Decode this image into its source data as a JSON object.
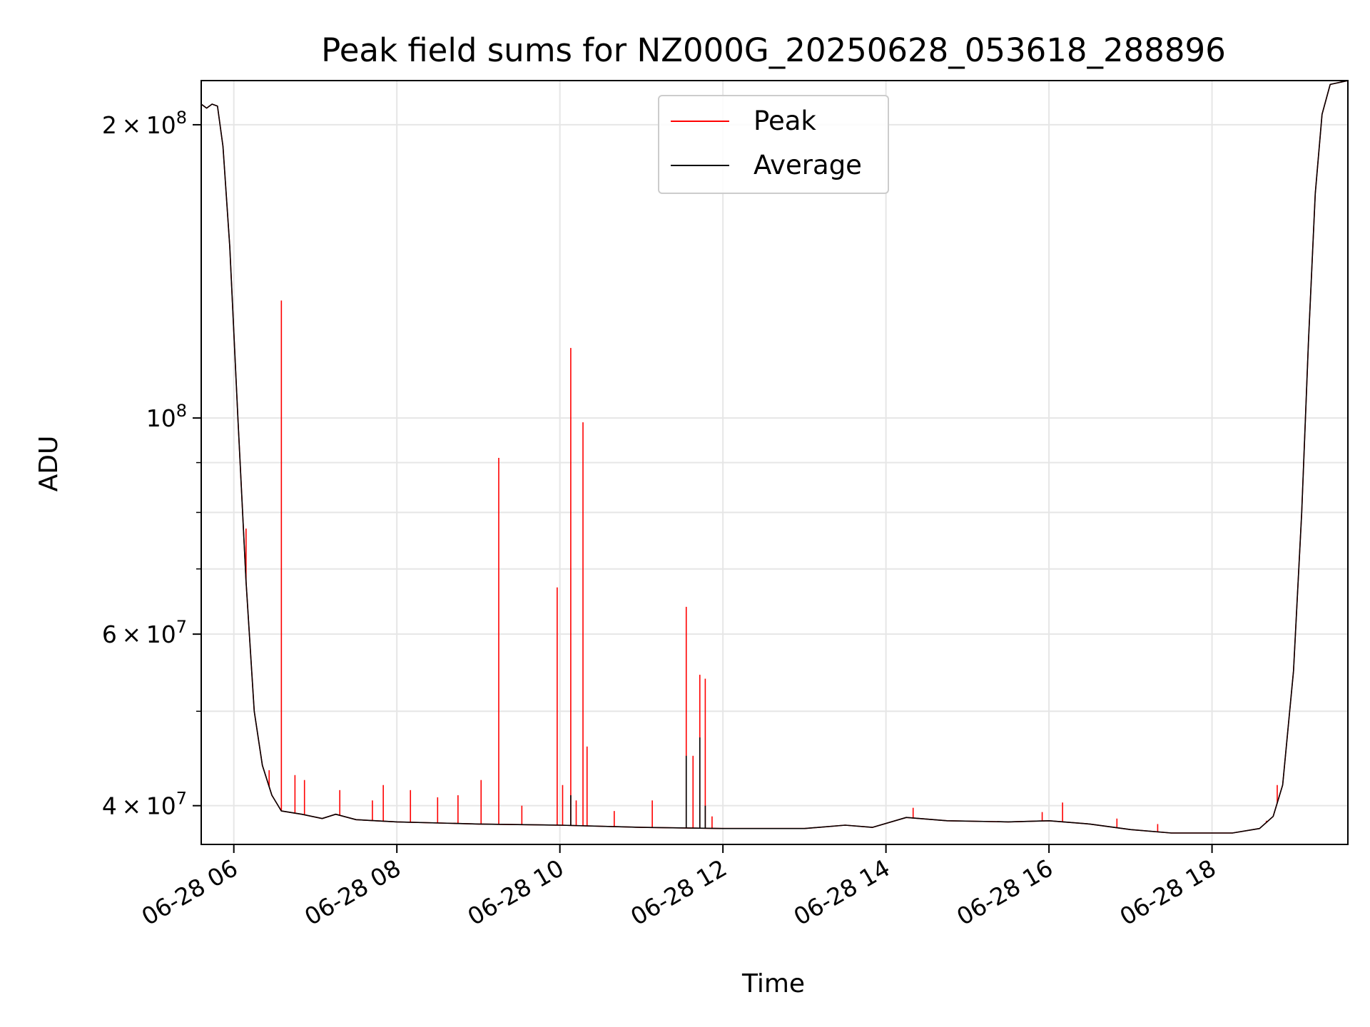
{
  "chart_data": {
    "type": "line",
    "title": "Peak field sums for NZ000G_20250628_053618_288896",
    "xlabel": "Time",
    "ylabel": "ADU",
    "y_scale": "log",
    "x_axis": "datetime",
    "xlim": [
      "2025-06-28 05:36",
      "2025-06-28 19:40"
    ],
    "ylim": [
      36500000,
      222000000
    ],
    "x_tick_labels": [
      "06-28 06",
      "06-28 08",
      "06-28 10",
      "06-28 12",
      "06-28 14",
      "06-28 16",
      "06-28 18"
    ],
    "y_major_ticks": [
      {
        "value": 40000000,
        "mantissa": "4",
        "exponent": "7"
      },
      {
        "value": 60000000,
        "mantissa": "6",
        "exponent": "7"
      },
      {
        "value": 100000000,
        "mantissa": "",
        "exponent": "8"
      },
      {
        "value": 200000000,
        "mantissa": "2",
        "exponent": "8"
      }
    ],
    "y_minor_ticks": [
      50000000,
      70000000,
      80000000,
      90000000
    ],
    "grid": true,
    "legend_position": "top-center",
    "series": [
      {
        "name": "Peak",
        "color": "#ff0000",
        "base": [
          [
            "2025-06-28 05:36",
            210000000
          ],
          [
            "2025-06-28 05:40",
            208000000
          ],
          [
            "2025-06-28 05:44",
            210000000
          ],
          [
            "2025-06-28 05:48",
            209000000
          ],
          [
            "2025-06-28 05:52",
            190000000
          ],
          [
            "2025-06-28 05:57",
            150000000
          ],
          [
            "2025-06-28 06:03",
            100000000
          ],
          [
            "2025-06-28 06:09",
            68000000
          ],
          [
            "2025-06-28 06:15",
            50000000
          ],
          [
            "2025-06-28 06:21",
            44000000
          ],
          [
            "2025-06-28 06:28",
            41000000
          ],
          [
            "2025-06-28 06:35",
            39500000
          ],
          [
            "2025-06-28 06:50",
            39200000
          ],
          [
            "2025-06-28 07:05",
            38800000
          ],
          [
            "2025-06-28 07:15",
            39200000
          ],
          [
            "2025-06-28 07:30",
            38700000
          ],
          [
            "2025-06-28 08:00",
            38500000
          ],
          [
            "2025-06-28 09:00",
            38300000
          ],
          [
            "2025-06-28 10:00",
            38200000
          ],
          [
            "2025-06-28 11:00",
            38000000
          ],
          [
            "2025-06-28 12:00",
            37900000
          ],
          [
            "2025-06-28 13:00",
            37900000
          ],
          [
            "2025-06-28 13:30",
            38200000
          ],
          [
            "2025-06-28 13:50",
            38000000
          ],
          [
            "2025-06-28 14:15",
            38900000
          ],
          [
            "2025-06-28 14:45",
            38600000
          ],
          [
            "2025-06-28 15:30",
            38500000
          ],
          [
            "2025-06-28 16:00",
            38600000
          ],
          [
            "2025-06-28 16:30",
            38300000
          ],
          [
            "2025-06-28 17:00",
            37800000
          ],
          [
            "2025-06-28 17:30",
            37500000
          ],
          [
            "2025-06-28 18:15",
            37500000
          ],
          [
            "2025-06-28 18:35",
            37900000
          ],
          [
            "2025-06-28 18:45",
            39000000
          ],
          [
            "2025-06-28 18:52",
            42000000
          ],
          [
            "2025-06-28 19:00",
            55000000
          ],
          [
            "2025-06-28 19:06",
            80000000
          ],
          [
            "2025-06-28 19:11",
            120000000
          ],
          [
            "2025-06-28 19:16",
            170000000
          ],
          [
            "2025-06-28 19:21",
            205000000
          ],
          [
            "2025-06-28 19:27",
            220000000
          ],
          [
            "2025-06-28 19:40",
            222000000
          ]
        ],
        "spikes": [
          [
            "2025-06-28 06:09",
            77000000
          ],
          [
            "2025-06-28 06:35",
            132000000
          ],
          [
            "2025-06-28 06:26",
            43500000
          ],
          [
            "2025-06-28 06:45",
            43000000
          ],
          [
            "2025-06-28 06:52",
            42500000
          ],
          [
            "2025-06-28 07:18",
            41500000
          ],
          [
            "2025-06-28 07:42",
            40500000
          ],
          [
            "2025-06-28 07:50",
            42000000
          ],
          [
            "2025-06-28 08:10",
            41500000
          ],
          [
            "2025-06-28 08:30",
            40800000
          ],
          [
            "2025-06-28 08:45",
            41000000
          ],
          [
            "2025-06-28 09:02",
            42500000
          ],
          [
            "2025-06-28 09:15",
            91000000
          ],
          [
            "2025-06-28 09:32",
            40000000
          ],
          [
            "2025-06-28 09:58",
            67000000
          ],
          [
            "2025-06-28 10:02",
            42000000
          ],
          [
            "2025-06-28 10:08",
            118000000
          ],
          [
            "2025-06-28 10:12",
            40500000
          ],
          [
            "2025-06-28 10:17",
            99000000
          ],
          [
            "2025-06-28 10:20",
            46000000
          ],
          [
            "2025-06-28 10:40",
            39500000
          ],
          [
            "2025-06-28 11:08",
            40500000
          ],
          [
            "2025-06-28 11:33",
            64000000
          ],
          [
            "2025-06-28 11:38",
            45000000
          ],
          [
            "2025-06-28 11:43",
            54500000
          ],
          [
            "2025-06-28 11:47",
            54000000
          ],
          [
            "2025-06-28 11:52",
            39000000
          ],
          [
            "2025-06-28 14:20",
            39800000
          ],
          [
            "2025-06-28 15:55",
            39400000
          ],
          [
            "2025-06-28 16:10",
            40300000
          ],
          [
            "2025-06-28 16:50",
            38800000
          ],
          [
            "2025-06-28 17:20",
            38300000
          ],
          [
            "2025-06-28 18:40",
            38600000
          ],
          [
            "2025-06-28 18:48",
            42000000
          ]
        ]
      },
      {
        "name": "Average",
        "color": "#000000",
        "base": [
          [
            "2025-06-28 05:36",
            210000000
          ],
          [
            "2025-06-28 05:40",
            208000000
          ],
          [
            "2025-06-28 05:44",
            210000000
          ],
          [
            "2025-06-28 05:48",
            209000000
          ],
          [
            "2025-06-28 05:52",
            190000000
          ],
          [
            "2025-06-28 05:57",
            150000000
          ],
          [
            "2025-06-28 06:03",
            100000000
          ],
          [
            "2025-06-28 06:09",
            68000000
          ],
          [
            "2025-06-28 06:15",
            50000000
          ],
          [
            "2025-06-28 06:21",
            44000000
          ],
          [
            "2025-06-28 06:28",
            41000000
          ],
          [
            "2025-06-28 06:35",
            39500000
          ],
          [
            "2025-06-28 06:50",
            39200000
          ],
          [
            "2025-06-28 07:05",
            38800000
          ],
          [
            "2025-06-28 07:15",
            39200000
          ],
          [
            "2025-06-28 07:30",
            38700000
          ],
          [
            "2025-06-28 08:00",
            38500000
          ],
          [
            "2025-06-28 09:00",
            38300000
          ],
          [
            "2025-06-28 10:00",
            38200000
          ],
          [
            "2025-06-28 11:00",
            38000000
          ],
          [
            "2025-06-28 12:00",
            37900000
          ],
          [
            "2025-06-28 13:00",
            37900000
          ],
          [
            "2025-06-28 13:30",
            38200000
          ],
          [
            "2025-06-28 13:50",
            38000000
          ],
          [
            "2025-06-28 14:15",
            38900000
          ],
          [
            "2025-06-28 14:45",
            38600000
          ],
          [
            "2025-06-28 15:30",
            38500000
          ],
          [
            "2025-06-28 16:00",
            38600000
          ],
          [
            "2025-06-28 16:30",
            38300000
          ],
          [
            "2025-06-28 17:00",
            37800000
          ],
          [
            "2025-06-28 17:30",
            37500000
          ],
          [
            "2025-06-28 18:15",
            37500000
          ],
          [
            "2025-06-28 18:35",
            37900000
          ],
          [
            "2025-06-28 18:45",
            39000000
          ],
          [
            "2025-06-28 18:52",
            42000000
          ],
          [
            "2025-06-28 19:00",
            55000000
          ],
          [
            "2025-06-28 19:06",
            80000000
          ],
          [
            "2025-06-28 19:11",
            120000000
          ],
          [
            "2025-06-28 19:16",
            170000000
          ],
          [
            "2025-06-28 19:21",
            205000000
          ],
          [
            "2025-06-28 19:27",
            220000000
          ],
          [
            "2025-06-28 19:40",
            222000000
          ]
        ],
        "spikes": [
          [
            "2025-06-28 10:08",
            41000000
          ],
          [
            "2025-06-28 11:33",
            45000000
          ],
          [
            "2025-06-28 11:43",
            47000000
          ],
          [
            "2025-06-28 11:47",
            40000000
          ]
        ]
      }
    ]
  }
}
